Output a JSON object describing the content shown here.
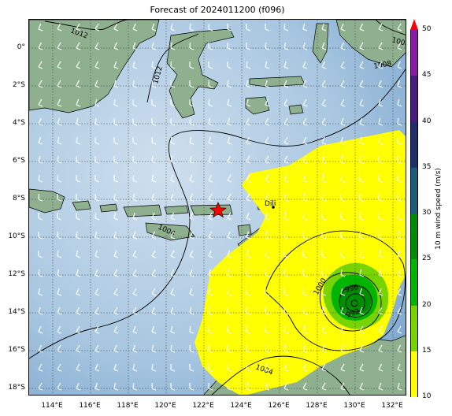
{
  "title": "Forecast of 2024011200 (f096)",
  "lat_labels": [
    "0°",
    "2°S",
    "4°S",
    "6°S",
    "8°S",
    "10°S",
    "12°S",
    "14°S",
    "16°S",
    "18°S"
  ],
  "lon_labels": [
    "114°E",
    "116°E",
    "118°E",
    "120°E",
    "122°E",
    "124°E",
    "126°E",
    "128°E",
    "130°E",
    "132°E"
  ],
  "isobar_labels": [
    "1012",
    "1012",
    "1008",
    "1008",
    "1004",
    "1000",
    "996",
    "992",
    "1004",
    "1008"
  ],
  "city_label": "Dili",
  "colorbar": {
    "unit_label": "10 m wind speed (m/s)",
    "ticks": [
      "10",
      "15",
      "20",
      "25",
      "30",
      "35",
      "40",
      "45",
      "50"
    ],
    "colors": [
      "#ffff00",
      "#78d400",
      "#00b400",
      "#008c00",
      "#1a5f7a",
      "#1e2f6a",
      "#4b1a80",
      "#8c1aa8",
      "#b400b4"
    ],
    "extend_color": "#ff0000"
  },
  "marker": "red star"
}
